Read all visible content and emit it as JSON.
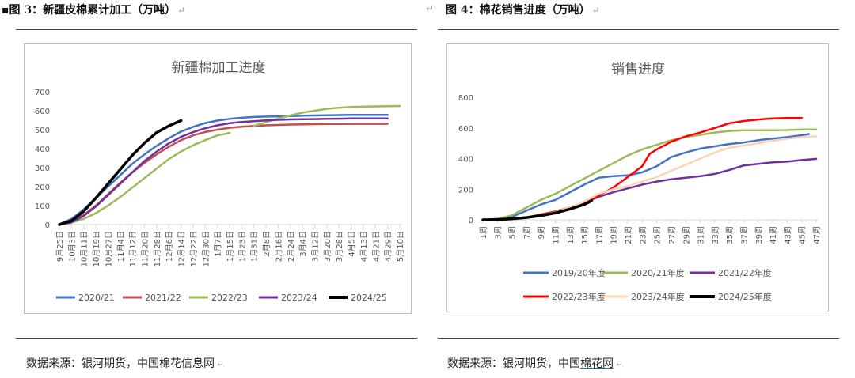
{
  "left": {
    "caption": "▪图 3：新疆皮棉累计加工（万吨）",
    "source": "数据来源：银河期货，中国棉花信息网"
  },
  "right": {
    "caption": "图 4：棉花销售进度（万吨）",
    "source_prefix": "数据来源：银河期货，中国",
    "source_link": "棉花网"
  },
  "return_mark": "↵",
  "chart_data": [
    {
      "type": "line",
      "title": "新疆棉加工进度",
      "xlabel": "",
      "ylabel": "",
      "ylim": [
        0,
        700
      ],
      "yticks": [
        0,
        100,
        200,
        300,
        400,
        500,
        600,
        700
      ],
      "categories": [
        "9月25日",
        "10月3日",
        "10月11日",
        "10月19日",
        "10月27日",
        "11月4日",
        "11月12日",
        "11月20日",
        "11月28日",
        "12月6日",
        "12月14日",
        "12月22日",
        "12月30日",
        "1月7日",
        "1月15日",
        "1月23日",
        "1月31日",
        "2月8日",
        "2月16日",
        "2月24日",
        "3月4日",
        "3月12日",
        "3月20日",
        "3月28日",
        "4月5日",
        "4月13日",
        "4月21日",
        "4月29日",
        "5月10日"
      ],
      "series": [
        {
          "name": "2020/21",
          "color": "#4472c4",
          "values": [
            [
              0,
              2
            ],
            [
              1,
              30
            ],
            [
              2,
              80
            ],
            [
              3,
              140
            ],
            [
              4,
              200
            ],
            [
              5,
              260
            ],
            [
              6,
              320
            ],
            [
              7,
              370
            ],
            [
              8,
              415
            ],
            [
              9,
              455
            ],
            [
              10,
              490
            ],
            [
              11,
              515
            ],
            [
              12,
              535
            ],
            [
              13,
              548
            ],
            [
              14,
              557
            ],
            [
              15,
              563
            ],
            [
              16,
              567
            ],
            [
              17,
              569
            ],
            [
              18,
              570
            ],
            [
              19,
              572
            ],
            [
              20,
              574
            ],
            [
              21,
              575
            ],
            [
              22,
              576
            ],
            [
              23,
              577
            ],
            [
              24,
              578
            ],
            [
              25,
              578
            ],
            [
              26,
              578
            ],
            [
              27,
              578
            ]
          ]
        },
        {
          "name": "2021/22",
          "color": "#c0504d",
          "values": [
            [
              0,
              0
            ],
            [
              1,
              15
            ],
            [
              2,
              50
            ],
            [
              3,
              100
            ],
            [
              4,
              160
            ],
            [
              5,
              220
            ],
            [
              6,
              275
            ],
            [
              7,
              325
            ],
            [
              8,
              370
            ],
            [
              9,
              410
            ],
            [
              10,
              445
            ],
            [
              11,
              470
            ],
            [
              12,
              488
            ],
            [
              13,
              500
            ],
            [
              14,
              510
            ],
            [
              15,
              516
            ],
            [
              16,
              520
            ],
            [
              17,
              523
            ],
            [
              18,
              525
            ],
            [
              19,
              527
            ],
            [
              20,
              528
            ],
            [
              21,
              529
            ],
            [
              22,
              530
            ],
            [
              23,
              530
            ],
            [
              24,
              531
            ],
            [
              25,
              531
            ],
            [
              26,
              531
            ],
            [
              27,
              531
            ]
          ]
        },
        {
          "name": "2022/23",
          "color": "#9bbb59",
          "values": [
            [
              0,
              0
            ],
            [
              1,
              10
            ],
            [
              2,
              30
            ],
            [
              3,
              60
            ],
            [
              4,
              100
            ],
            [
              5,
              145
            ],
            [
              6,
              195
            ],
            [
              7,
              245
            ],
            [
              8,
              295
            ],
            [
              9,
              345
            ],
            [
              10,
              385
            ],
            [
              11,
              418
            ],
            [
              12,
              445
            ],
            [
              13,
              470
            ],
            [
              14,
              483
            ],
            [
              15,
              null
            ],
            [
              16,
              520
            ],
            [
              17,
              540
            ],
            [
              18,
              558
            ],
            [
              19,
              575
            ],
            [
              20,
              590
            ],
            [
              21,
              600
            ],
            [
              22,
              610
            ],
            [
              23,
              616
            ],
            [
              24,
              620
            ],
            [
              25,
              622
            ],
            [
              26,
              623
            ],
            [
              27,
              624
            ],
            [
              28,
              625
            ]
          ]
        },
        {
          "name": "2023/24",
          "color": "#7030a0",
          "values": [
            [
              0,
              0
            ],
            [
              1,
              12
            ],
            [
              2,
              45
            ],
            [
              3,
              95
            ],
            [
              4,
              155
            ],
            [
              5,
              215
            ],
            [
              6,
              275
            ],
            [
              7,
              335
            ],
            [
              8,
              385
            ],
            [
              9,
              428
            ],
            [
              10,
              462
            ],
            [
              11,
              487
            ],
            [
              12,
              508
            ],
            [
              13,
              523
            ],
            [
              14,
              534
            ],
            [
              15,
              541
            ],
            [
              16,
              545
            ],
            [
              17,
              549
            ],
            [
              18,
              552
            ],
            [
              19,
              554
            ],
            [
              20,
              555
            ],
            [
              21,
              556
            ],
            [
              22,
              557
            ],
            [
              23,
              558
            ],
            [
              24,
              559
            ],
            [
              25,
              559
            ],
            [
              26,
              559
            ],
            [
              27,
              559
            ]
          ]
        },
        {
          "name": "2024/25",
          "color": "#000000",
          "values": [
            [
              0,
              0
            ],
            [
              1,
              20
            ],
            [
              2,
              70
            ],
            [
              3,
              140
            ],
            [
              4,
              215
            ],
            [
              5,
              290
            ],
            [
              6,
              365
            ],
            [
              7,
              430
            ],
            [
              8,
              485
            ],
            [
              9,
              520
            ],
            [
              10,
              548
            ]
          ]
        }
      ]
    },
    {
      "type": "line",
      "title": "销售进度",
      "xlabel": "",
      "ylabel": "",
      "ylim": [
        0,
        800
      ],
      "yticks": [
        0,
        200,
        400,
        600,
        800
      ],
      "categories": [
        "1周",
        "3周",
        "5周",
        "7周",
        "9周",
        "11周",
        "13周",
        "15周",
        "17周",
        "19周",
        "21周",
        "23周",
        "25周",
        "27周",
        "29周",
        "31周",
        "33周",
        "35周",
        "37周",
        "39周",
        "41周",
        "43周",
        "45周",
        "47周"
      ],
      "series": [
        {
          "name": "2019/20年度",
          "color": "#4472c4",
          "values": [
            [
              1,
              0
            ],
            [
              3,
              5
            ],
            [
              5,
              20
            ],
            [
              7,
              60
            ],
            [
              9,
              100
            ],
            [
              11,
              130
            ],
            [
              13,
              180
            ],
            [
              15,
              230
            ],
            [
              17,
              275
            ],
            [
              19,
              285
            ],
            [
              21,
              290
            ],
            [
              23,
              310
            ],
            [
              25,
              350
            ],
            [
              27,
              410
            ],
            [
              29,
              440
            ],
            [
              31,
              465
            ],
            [
              33,
              480
            ],
            [
              35,
              495
            ],
            [
              37,
              505
            ],
            [
              39,
              520
            ],
            [
              41,
              530
            ],
            [
              43,
              540
            ],
            [
              45,
              552
            ],
            [
              46,
              560
            ]
          ]
        },
        {
          "name": "2020/21年度",
          "color": "#9bbb59",
          "values": [
            [
              1,
              0
            ],
            [
              3,
              5
            ],
            [
              5,
              30
            ],
            [
              7,
              80
            ],
            [
              9,
              130
            ],
            [
              11,
              170
            ],
            [
              13,
              220
            ],
            [
              15,
              270
            ],
            [
              17,
              320
            ],
            [
              19,
              370
            ],
            [
              21,
              420
            ],
            [
              23,
              460
            ],
            [
              25,
              490
            ],
            [
              27,
              520
            ],
            [
              29,
              540
            ],
            [
              31,
              555
            ],
            [
              33,
              570
            ],
            [
              35,
              580
            ],
            [
              37,
              585
            ],
            [
              39,
              585
            ],
            [
              41,
              585
            ],
            [
              43,
              586
            ],
            [
              45,
              590
            ],
            [
              47,
              590
            ]
          ]
        },
        {
          "name": "2021/22年度",
          "color": "#7030a0",
          "values": [
            [
              1,
              0
            ],
            [
              3,
              0
            ],
            [
              5,
              5
            ],
            [
              7,
              15
            ],
            [
              9,
              30
            ],
            [
              11,
              50
            ],
            [
              13,
              80
            ],
            [
              15,
              110
            ],
            [
              17,
              150
            ],
            [
              19,
              180
            ],
            [
              21,
              205
            ],
            [
              23,
              230
            ],
            [
              25,
              250
            ],
            [
              27,
              265
            ],
            [
              29,
              275
            ],
            [
              31,
              285
            ],
            [
              33,
              300
            ],
            [
              35,
              325
            ],
            [
              37,
              355
            ],
            [
              39,
              365
            ],
            [
              41,
              375
            ],
            [
              43,
              380
            ],
            [
              45,
              390
            ],
            [
              47,
              398
            ]
          ]
        },
        {
          "name": "2022/23年度",
          "color": "#ff0000",
          "values": [
            [
              1,
              0
            ],
            [
              3,
              0
            ],
            [
              5,
              5
            ],
            [
              7,
              15
            ],
            [
              9,
              35
            ],
            [
              11,
              55
            ],
            [
              13,
              80
            ],
            [
              15,
              110
            ],
            [
              17,
              160
            ],
            [
              19,
              210
            ],
            [
              21,
              280
            ],
            [
              23,
              350
            ],
            [
              24,
              430
            ],
            [
              25,
              460
            ],
            [
              27,
              510
            ],
            [
              29,
              545
            ],
            [
              31,
              570
            ],
            [
              33,
              600
            ],
            [
              35,
              630
            ],
            [
              37,
              645
            ],
            [
              39,
              655
            ],
            [
              41,
              662
            ],
            [
              43,
              665
            ],
            [
              45,
              665
            ]
          ]
        },
        {
          "name": "2023/24年度",
          "color": "#fbd4b4",
          "values": [
            [
              1,
              0
            ],
            [
              3,
              0
            ],
            [
              5,
              5
            ],
            [
              7,
              15
            ],
            [
              9,
              30
            ],
            [
              11,
              50
            ],
            [
              13,
              80
            ],
            [
              15,
              120
            ],
            [
              17,
              170
            ],
            [
              19,
              200
            ],
            [
              21,
              220
            ],
            [
              23,
              250
            ],
            [
              25,
              280
            ],
            [
              27,
              320
            ],
            [
              29,
              360
            ],
            [
              31,
              400
            ],
            [
              33,
              440
            ],
            [
              35,
              470
            ],
            [
              37,
              485
            ],
            [
              39,
              500
            ],
            [
              41,
              515
            ],
            [
              43,
              530
            ],
            [
              45,
              540
            ],
            [
              47,
              545
            ]
          ]
        },
        {
          "name": "2024/25年度",
          "color": "#000000",
          "values": [
            [
              1,
              0
            ],
            [
              3,
              2
            ],
            [
              5,
              6
            ],
            [
              7,
              15
            ],
            [
              9,
              28
            ],
            [
              11,
              45
            ],
            [
              13,
              70
            ],
            [
              15,
              100
            ],
            [
              16,
              125
            ]
          ]
        }
      ]
    }
  ]
}
